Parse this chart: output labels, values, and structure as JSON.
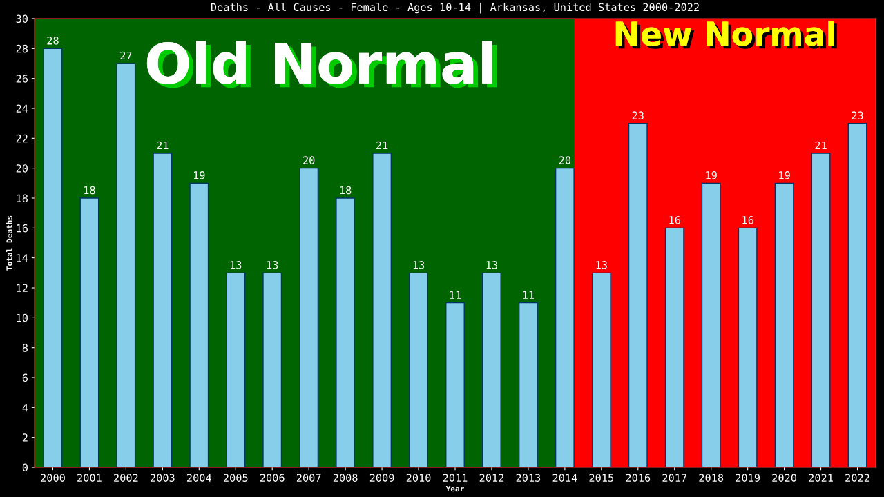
{
  "chart_data": {
    "type": "bar",
    "title": "Deaths - All Causes - Female - Ages 10-14 | Arkansas, United States 2000-2022",
    "xlabel": "Year",
    "ylabel": "Total Deaths",
    "x": [
      2000,
      2001,
      2002,
      2003,
      2004,
      2005,
      2006,
      2007,
      2008,
      2009,
      2010,
      2011,
      2012,
      2013,
      2014,
      2015,
      2016,
      2017,
      2018,
      2019,
      2020,
      2021,
      2022
    ],
    "values": [
      28,
      18,
      27,
      21,
      19,
      13,
      13,
      20,
      18,
      21,
      13,
      11,
      13,
      11,
      20,
      13,
      23,
      16,
      19,
      16,
      19,
      21,
      23
    ],
    "color": "#87ceeb",
    "data_labels": true,
    "xlim": [
      1999.5,
      2022.5
    ],
    "xticks": [
      2000,
      2001,
      2002,
      2003,
      2004,
      2005,
      2006,
      2007,
      2008,
      2009,
      2010,
      2011,
      2012,
      2013,
      2014,
      2015,
      2016,
      2017,
      2018,
      2019,
      2020,
      2021,
      2022
    ],
    "ylim": [
      0,
      30
    ],
    "yticks": [
      0,
      2,
      4,
      6,
      8,
      10,
      12,
      14,
      16,
      18,
      20,
      22,
      24,
      26,
      28,
      30
    ],
    "bands": [
      {
        "axis": "x",
        "from": 1999.5,
        "to": 2014.25,
        "label": "Old Normal",
        "color": "#006400"
      },
      {
        "axis": "x",
        "from": 2014.25,
        "to": 2022.5,
        "label": "New Normal",
        "color": "#ff0000"
      }
    ],
    "grid": false
  }
}
